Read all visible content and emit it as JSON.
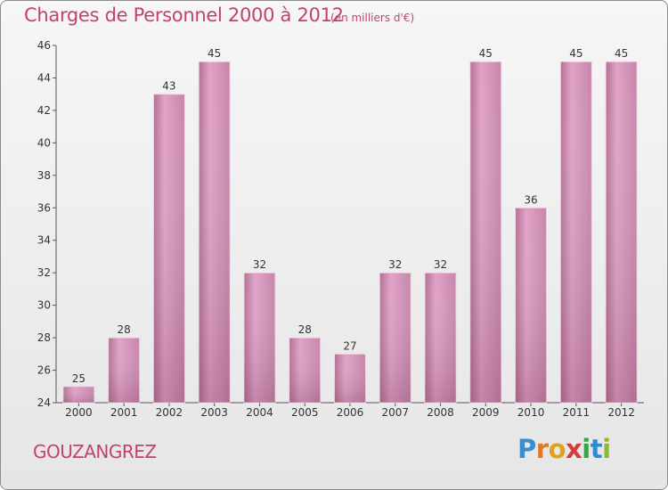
{
  "header": {
    "title": "Charges de Personnel 2000 à 2012",
    "unit": "(en milliers d'€)"
  },
  "footer": {
    "commune": "GOUZANGREZ",
    "logo": "Proxiti"
  },
  "colors": {
    "accent": "#c4426a",
    "bar": "#d898be",
    "bar_dark": "#b0708f"
  },
  "chart_data": {
    "type": "bar",
    "title": "Charges de Personnel 2000 à 2012",
    "subtitle": "(en milliers d'€)",
    "categories": [
      "2000",
      "2001",
      "2002",
      "2003",
      "2004",
      "2005",
      "2006",
      "2007",
      "2008",
      "2009",
      "2010",
      "2011",
      "2012"
    ],
    "values": [
      25,
      28,
      43,
      45,
      32,
      28,
      27,
      32,
      32,
      45,
      36,
      45,
      45
    ],
    "ylim": [
      24,
      46
    ],
    "yticks": [
      24,
      26,
      28,
      30,
      32,
      34,
      36,
      38,
      40,
      42,
      44,
      46
    ],
    "grid": false,
    "data_labels": true
  }
}
